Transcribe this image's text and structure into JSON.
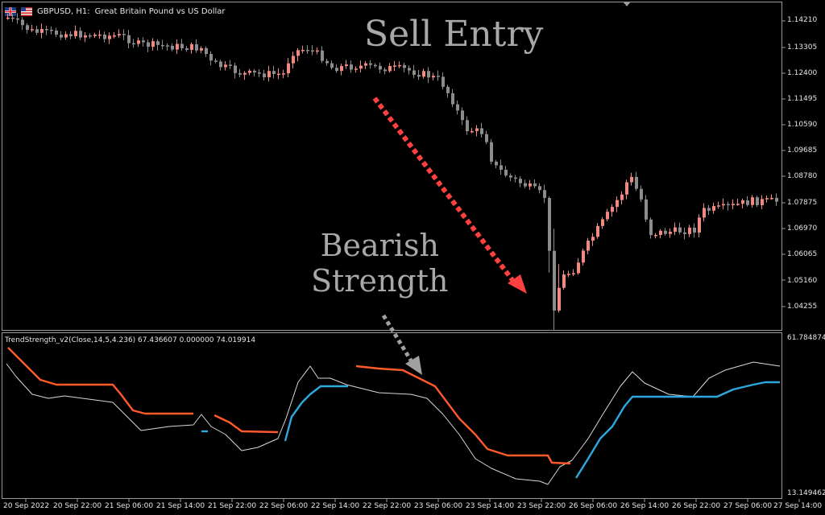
{
  "chart_header": {
    "symbol_timeframe": "GBPUSD, H1:",
    "description": "Great Britain Pound vs US Dollar"
  },
  "indicator": {
    "title": "TrendStrength_v2(Close,14,5,4.236) 67.436607 0.000000 74.019914",
    "scale_top": "61.784874",
    "scale_bottom": "13.149462"
  },
  "price_axis": [
    "1.14210",
    "1.13305",
    "1.12400",
    "1.11495",
    "1.10590",
    "1.09685",
    "1.08780",
    "1.07875",
    "1.06970",
    "1.06065",
    "1.05160",
    "1.04255"
  ],
  "time_axis": [
    "20 Sep 2022",
    "20 Sep 22:00",
    "21 Sep 06:00",
    "21 Sep 14:00",
    "21 Sep 22:00",
    "22 Sep 06:00",
    "22 Sep 14:00",
    "22 Sep 22:00",
    "23 Sep 06:00",
    "23 Sep 14:00",
    "23 Sep 22:00",
    "26 Sep 06:00",
    "26 Sep 14:00",
    "26 Sep 22:00",
    "27 Sep 06:00",
    "27 Sep 14:00"
  ],
  "annotations": {
    "sell_entry": "Sell Entry",
    "bearish_line1": "Bearish",
    "bearish_line2": "Strength"
  },
  "colors": {
    "bull_candle": "#f08a80",
    "bear_candle": "#8c8c8c",
    "bear_strength": "#ff5a2a",
    "bull_strength": "#2ea8e0",
    "signal_line": "#d8d8d8",
    "sell_arrow": "#ff4040",
    "note_arrow": "#a0a0a0"
  }
}
